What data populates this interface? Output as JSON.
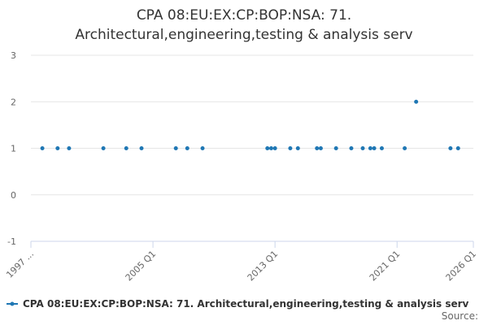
{
  "chart_data": {
    "type": "scatter",
    "title": [
      "CPA 08:EU:EX:CP:BOP:NSA: 71.",
      "Architectural,engineering,testing & analysis serv"
    ],
    "source": "Source:",
    "xlim": [
      1997,
      2026
    ],
    "xticks": [
      {
        "value": 1997,
        "label": "1997 ..."
      },
      {
        "value": 2005,
        "label": "2005 Q1"
      },
      {
        "value": 2013,
        "label": "2013 Q1"
      },
      {
        "value": 2021,
        "label": "2021 Q1"
      },
      {
        "value": 2026,
        "label": "2026 Q1"
      }
    ],
    "ylim": [
      -1,
      3
    ],
    "yticks": [
      -1,
      0,
      1,
      2,
      3
    ],
    "grid": true,
    "series": [
      {
        "name": "CPA 08:EU:EX:CP:BOP:NSA: 71. Architectural,engineering,testing & analysis serv",
        "color": "#1f77b4",
        "x": [
          1997.75,
          1998.75,
          1999.5,
          2001.75,
          2003.25,
          2004.25,
          2006.5,
          2007.25,
          2008.25,
          2012.5,
          2012.75,
          2013,
          2014,
          2014.5,
          2015.75,
          2016,
          2017,
          2018,
          2018.75,
          2019.25,
          2019.5,
          2020,
          2021.5,
          2022.25,
          2024.5,
          2025
        ],
        "values": [
          1,
          1,
          1,
          1,
          1,
          1,
          1,
          1,
          1,
          1,
          1,
          1,
          1,
          1,
          1,
          1,
          1,
          1,
          1,
          1,
          1,
          1,
          1,
          2,
          1,
          1
        ]
      }
    ]
  }
}
